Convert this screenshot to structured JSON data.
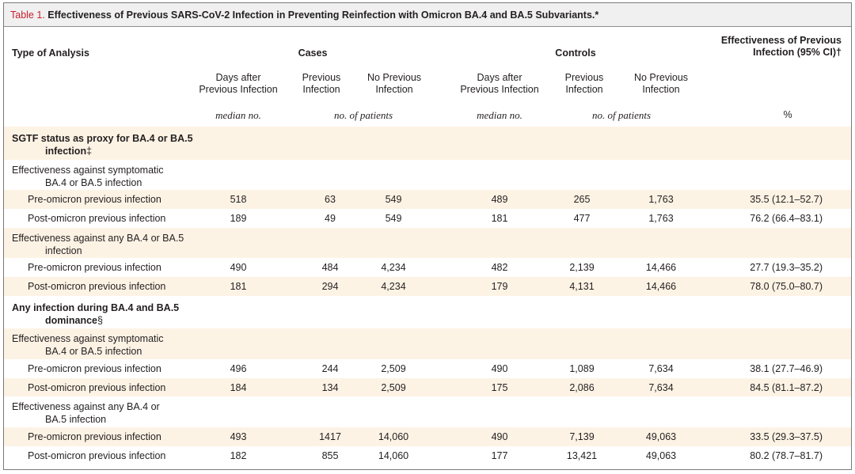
{
  "title": {
    "label": "Table 1.",
    "text": "Effectiveness of Previous SARS-CoV-2 Infection in Preventing Reinfection with Omicron BA.4 and BA.5 Subvariants.*"
  },
  "header": {
    "type_of_analysis": "Type of Analysis",
    "cases": "Cases",
    "controls": "Controls",
    "effectiveness_line1": "Effectiveness of Previous",
    "effectiveness_line2": "Infection (95% CI)†",
    "sub": {
      "days_after_1": "Days after",
      "days_after_2": "Previous Infection",
      "previous_1": "Previous",
      "previous_2": "Infection",
      "no_previous_1": "No Previous",
      "no_previous_2": "Infection"
    },
    "units": {
      "median": "median no.",
      "patients": "no. of patients",
      "percent": "%"
    }
  },
  "sections": [
    {
      "title_line1": "SGTF status as proxy for BA.4 or BA.5",
      "title_line2": "infection",
      "title_mark": "‡",
      "groups": [
        {
          "label_line1": "Effectiveness against symptomatic",
          "label_line2": "BA.4 or BA.5 infection",
          "rows": [
            {
              "label": "Pre-omicron previous infection",
              "case_days": "518",
              "case_prev": "63",
              "case_noprev": "549",
              "ctrl_days": "489",
              "ctrl_prev": "265",
              "ctrl_noprev": "1,763",
              "eff": "35.5 (12.1–52.7)"
            },
            {
              "label": "Post-omicron previous infection",
              "case_days": "189",
              "case_prev": "49",
              "case_noprev": "549",
              "ctrl_days": "181",
              "ctrl_prev": "477",
              "ctrl_noprev": "1,763",
              "eff": "76.2 (66.4–83.1)"
            }
          ]
        },
        {
          "label_line1": "Effectiveness against any BA.4 or BA.5",
          "label_line2": "infection",
          "rows": [
            {
              "label": "Pre-omicron previous infection",
              "case_days": "490",
              "case_prev": "484",
              "case_noprev": "4,234",
              "ctrl_days": "482",
              "ctrl_prev": "2,139",
              "ctrl_noprev": "14,466",
              "eff": "27.7 (19.3–35.2)"
            },
            {
              "label": "Post-omicron previous infection",
              "case_days": "181",
              "case_prev": "294",
              "case_noprev": "4,234",
              "ctrl_days": "179",
              "ctrl_prev": "4,131",
              "ctrl_noprev": "14,466",
              "eff": "78.0 (75.0–80.7)"
            }
          ]
        }
      ]
    },
    {
      "title_line1": "Any infection during BA.4 and BA.5",
      "title_line2": "dominance",
      "title_mark": "§",
      "groups": [
        {
          "label_line1": "Effectiveness against symptomatic",
          "label_line2": "BA.4 or BA.5 infection",
          "rows": [
            {
              "label": "Pre-omicron previous infection",
              "case_days": "496",
              "case_prev": "244",
              "case_noprev": "2,509",
              "ctrl_days": "490",
              "ctrl_prev": "1,089",
              "ctrl_noprev": "7,634",
              "eff": "38.1 (27.7–46.9)"
            },
            {
              "label": "Post-omicron previous infection",
              "case_days": "184",
              "case_prev": "134",
              "case_noprev": "2,509",
              "ctrl_days": "175",
              "ctrl_prev": "2,086",
              "ctrl_noprev": "7,634",
              "eff": "84.5 (81.1–87.2)"
            }
          ]
        },
        {
          "label_line1": "Effectiveness against any BA.4 or",
          "label_line2": "BA.5 infection",
          "rows": [
            {
              "label": "Pre-omicron previous infection",
              "case_days": "493",
              "case_prev": "1417",
              "case_noprev": "14,060",
              "ctrl_days": "490",
              "ctrl_prev": "7,139",
              "ctrl_noprev": "49,063",
              "eff": "33.5 (29.3–37.5)"
            },
            {
              "label": "Post-omicron previous infection",
              "case_days": "182",
              "case_prev": "855",
              "case_noprev": "14,060",
              "ctrl_days": "177",
              "ctrl_prev": "13,421",
              "ctrl_noprev": "49,063",
              "eff": "80.2 (78.7–81.7)"
            }
          ]
        }
      ]
    }
  ]
}
